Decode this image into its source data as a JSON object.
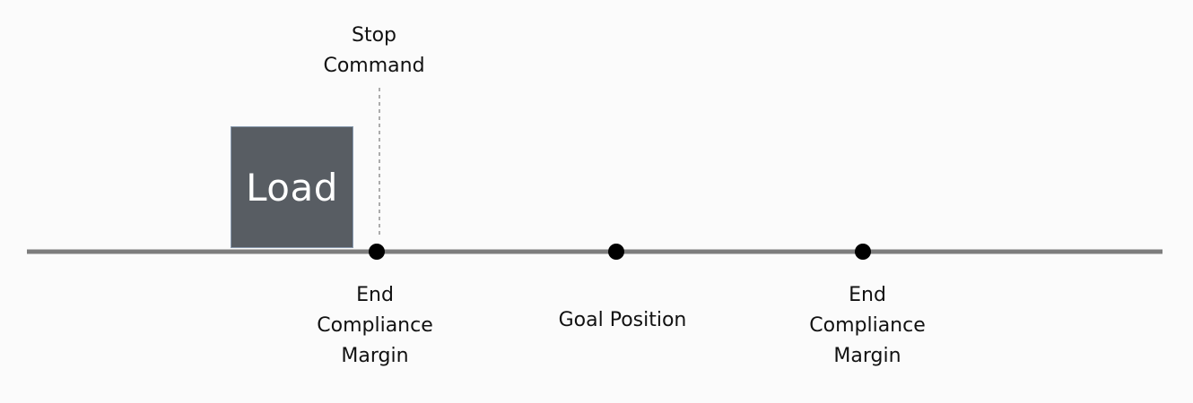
{
  "load": {
    "label": "Load"
  },
  "stop_command": {
    "lines": [
      "Stop",
      "Command"
    ]
  },
  "points": [
    {
      "lines": [
        "End",
        "Compliance",
        "Margin"
      ]
    },
    {
      "lines": [
        "Goal Position"
      ]
    },
    {
      "lines": [
        "End",
        "Compliance",
        "Margin"
      ]
    }
  ],
  "colors": {
    "axis": "#7d7d7d",
    "point": "#000000",
    "load_fill": "#585d63",
    "load_border": "#8a9bb0",
    "background": "#fbfbfb"
  }
}
